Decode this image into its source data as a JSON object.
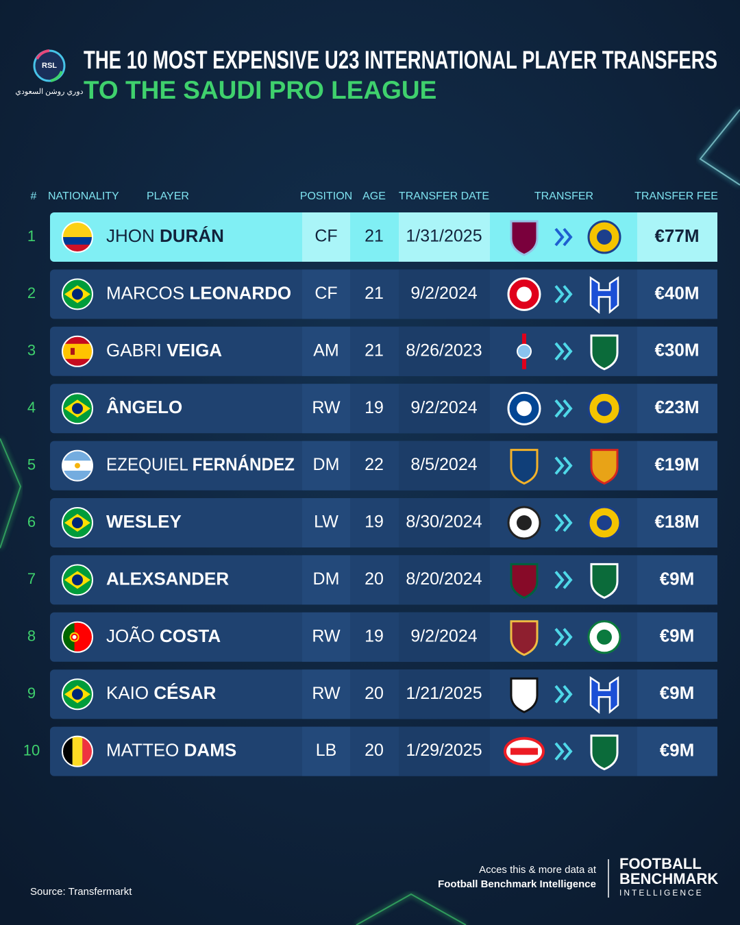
{
  "logo": {
    "text": "RSL",
    "arabic": "دوري روشن السعودي"
  },
  "header": {
    "title": "THE 10 MOST EXPENSIVE U23 INTERNATIONAL PLAYER TRANSFERS",
    "subtitle": "TO THE SAUDI PRO LEAGUE"
  },
  "table": {
    "columns": [
      "#",
      "NATIONALITY",
      "PLAYER",
      "POSITION",
      "AGE",
      "TRANSFER DATE",
      "TRANSFER",
      "TRANSFER FEE"
    ],
    "rows": [
      {
        "rank": 1,
        "first": "JHON",
        "last": "DURÁN",
        "position": "CF",
        "age": 21,
        "date": "1/31/2025",
        "fee": "€77M"
      },
      {
        "rank": 2,
        "first": "MARCOS",
        "last": "LEONARDO",
        "position": "CF",
        "age": 21,
        "date": "9/2/2024",
        "fee": "€40M"
      },
      {
        "rank": 3,
        "first": "GABRI",
        "last": "VEIGA",
        "position": "AM",
        "age": 21,
        "date": "8/26/2023",
        "fee": "€30M"
      },
      {
        "rank": 4,
        "last": "ÂNGELO",
        "position": "RW",
        "age": 19,
        "date": "9/2/2024",
        "fee": "€23M"
      },
      {
        "rank": 5,
        "first": "EZEQUIEL",
        "last": "FERNÁNDEZ",
        "position": "DM",
        "age": 22,
        "date": "8/5/2024",
        "fee": "€19M"
      },
      {
        "rank": 6,
        "last": "WESLEY",
        "position": "LW",
        "age": 19,
        "date": "8/30/2024",
        "fee": "€18M"
      },
      {
        "rank": 7,
        "last": "ALEXSANDER",
        "position": "DM",
        "age": 20,
        "date": "8/20/2024",
        "fee": "€9M"
      },
      {
        "rank": 8,
        "first": "JOÃO",
        "last": "COSTA",
        "position": "RW",
        "age": 19,
        "date": "9/2/2024",
        "fee": "€9M"
      },
      {
        "rank": 9,
        "first": "KAIO",
        "last": "CÉSAR",
        "position": "RW",
        "age": 20,
        "date": "1/21/2025",
        "fee": "€9M"
      },
      {
        "rank": 10,
        "first": "MATTEO",
        "last": "DAMS",
        "position": "LB",
        "age": 20,
        "date": "1/29/2025",
        "fee": "€9M"
      }
    ]
  },
  "footer": {
    "source": "Source: Transfermarkt",
    "cta": "Acces this & more data at",
    "cta_link": "Football Benchmark Intelligence",
    "brand": [
      "FOOTBALL",
      "BENCHMARK",
      "INTELLIGENCE"
    ]
  }
}
